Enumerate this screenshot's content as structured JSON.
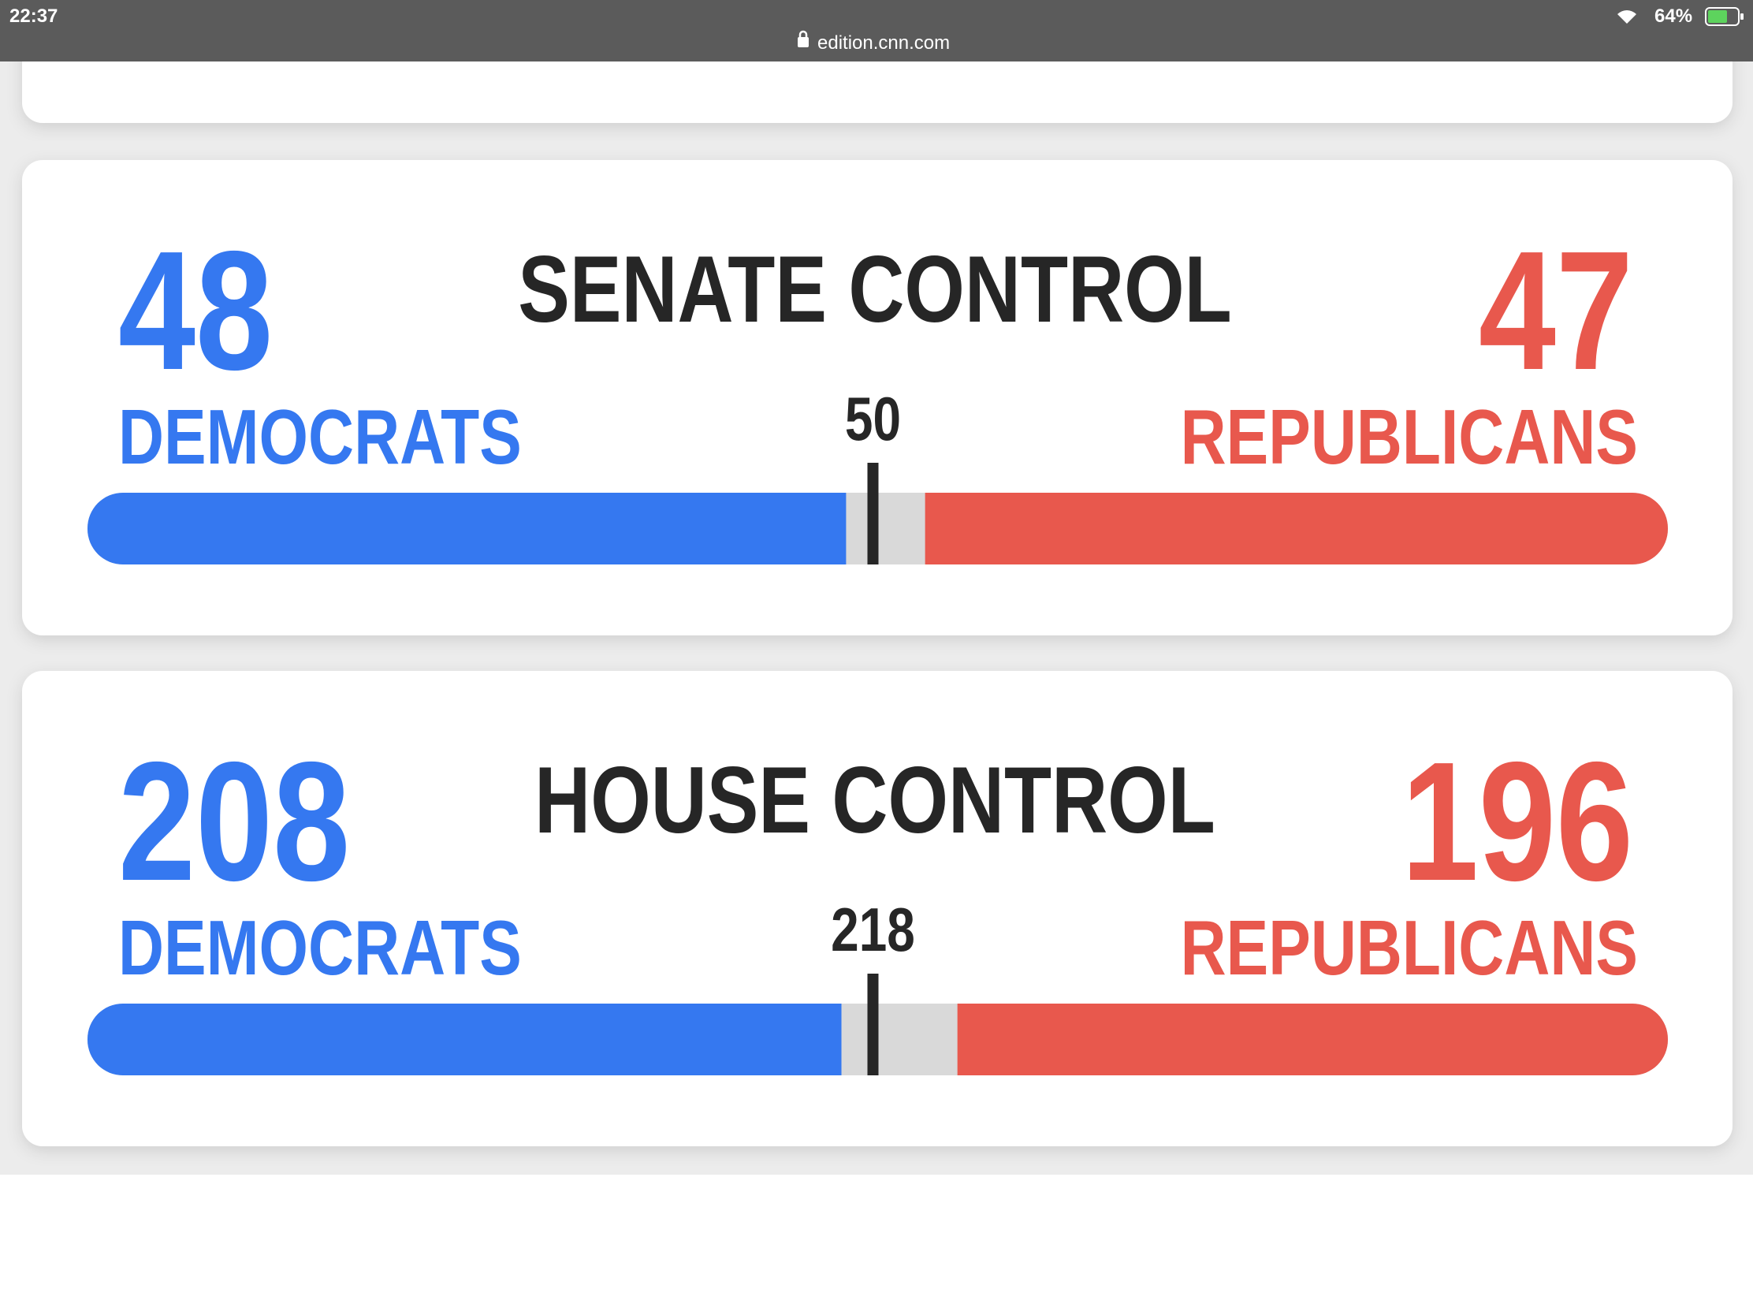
{
  "status_bar": {
    "time": "22:37",
    "url": "edition.cnn.com",
    "battery": "64%"
  },
  "cards": [
    {
      "title": "SENATE CONTROL",
      "threshold": 50,
      "democrats": {
        "seats": 48,
        "label": "DEMOCRATS"
      },
      "republicans": {
        "seats": 47,
        "label": "REPUBLICANS"
      }
    },
    {
      "title": "HOUSE CONTROL",
      "threshold": 218,
      "democrats": {
        "seats": 208,
        "label": "DEMOCRATS"
      },
      "republicans": {
        "seats": 196,
        "label": "REPUBLICANS"
      }
    }
  ]
}
